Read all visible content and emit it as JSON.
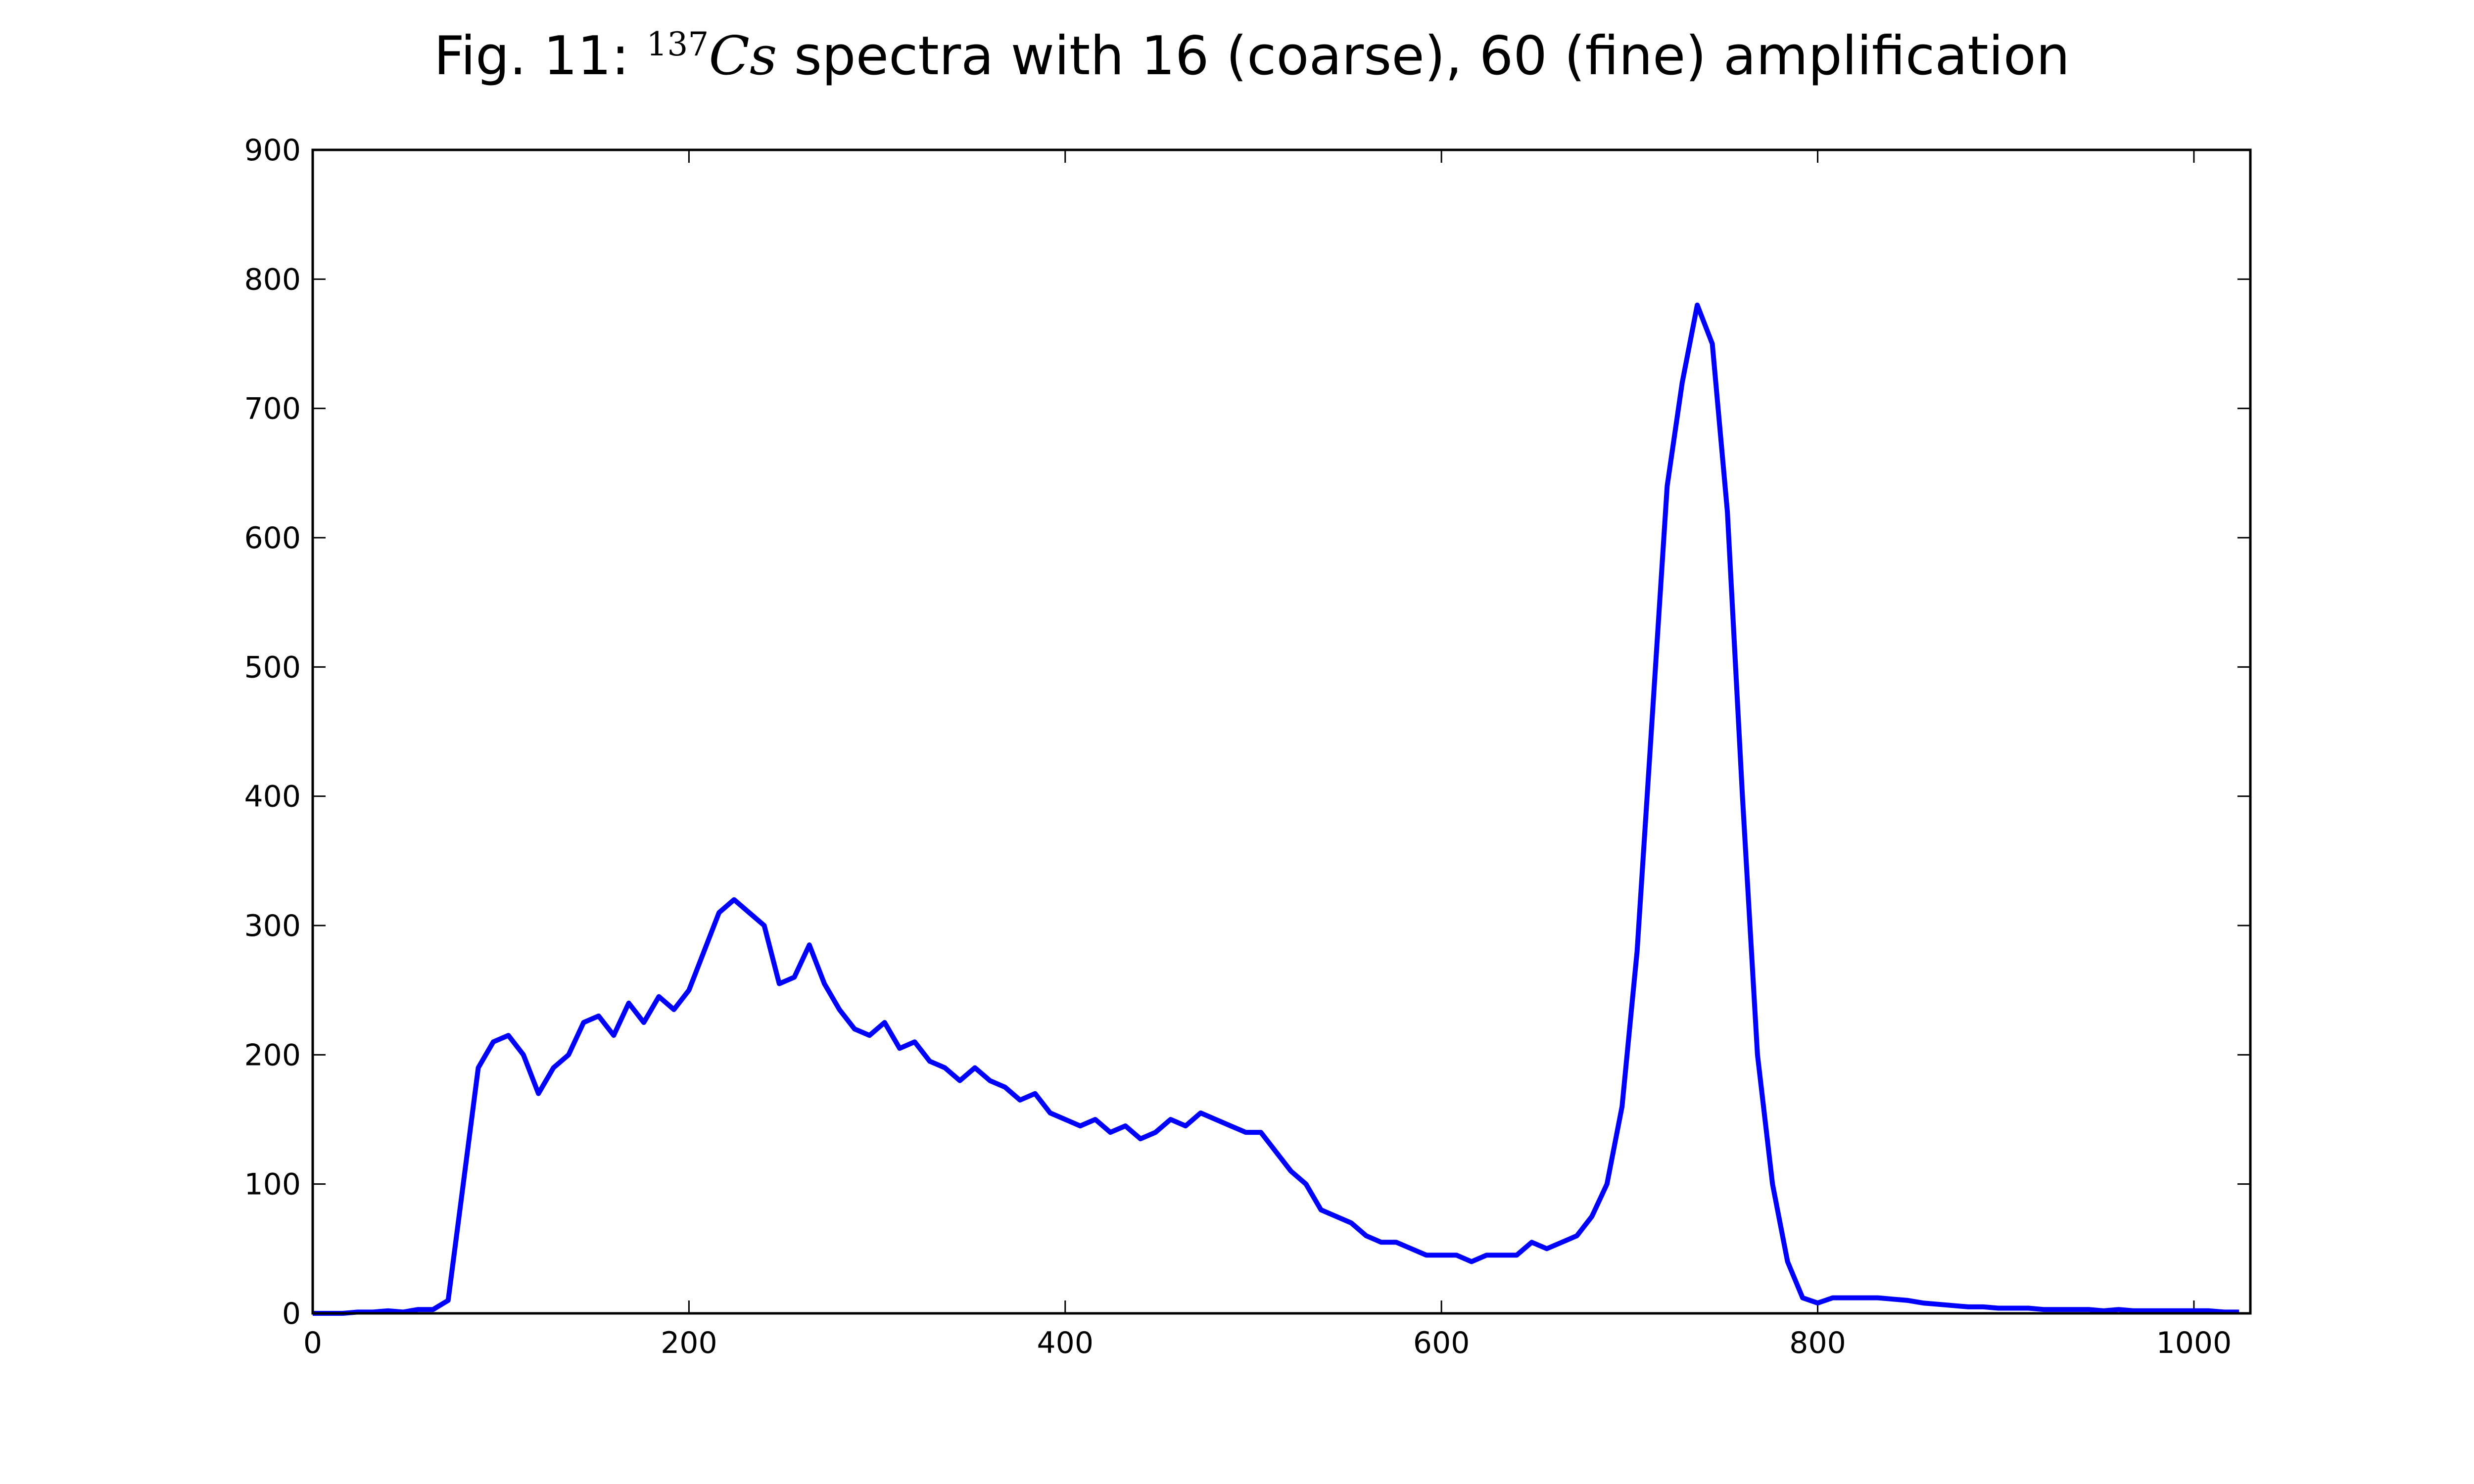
{
  "chart_data": {
    "type": "line",
    "title_prefix": "Fig. 11:",
    "title_sup": "137",
    "title_italic": "Cs",
    "title_rest": "spectra with 16 (coarse), 60 (fine) amplification",
    "xlim": [
      0,
      1030
    ],
    "ylim": [
      0,
      900
    ],
    "xticks": [
      0,
      200,
      400,
      600,
      800,
      1000
    ],
    "yticks": [
      0,
      100,
      200,
      300,
      400,
      500,
      600,
      700,
      800,
      900
    ],
    "x": [
      0,
      8,
      16,
      24,
      32,
      40,
      48,
      56,
      64,
      72,
      80,
      88,
      96,
      104,
      112,
      120,
      128,
      136,
      144,
      152,
      160,
      168,
      176,
      184,
      192,
      200,
      208,
      216,
      224,
      232,
      240,
      248,
      256,
      264,
      272,
      280,
      288,
      296,
      304,
      312,
      320,
      328,
      336,
      344,
      352,
      360,
      368,
      376,
      384,
      392,
      400,
      408,
      416,
      424,
      432,
      440,
      448,
      456,
      464,
      472,
      480,
      488,
      496,
      504,
      512,
      520,
      528,
      536,
      544,
      552,
      560,
      568,
      576,
      584,
      592,
      600,
      608,
      616,
      624,
      632,
      640,
      648,
      656,
      664,
      672,
      680,
      688,
      696,
      704,
      712,
      720,
      728,
      736,
      744,
      752,
      760,
      768,
      776,
      784,
      792,
      800,
      808,
      816,
      824,
      832,
      840,
      848,
      856,
      864,
      872,
      880,
      888,
      896,
      904,
      912,
      920,
      928,
      936,
      944,
      952,
      960,
      968,
      976,
      984,
      992,
      1000,
      1008,
      1016,
      1024
    ],
    "series": [
      {
        "name": "137Cs",
        "color": "#0000ff",
        "values": [
          0,
          0,
          0,
          1,
          1,
          2,
          1,
          3,
          3,
          10,
          100,
          190,
          210,
          215,
          200,
          170,
          190,
          200,
          225,
          230,
          215,
          240,
          225,
          245,
          235,
          250,
          280,
          310,
          320,
          310,
          300,
          255,
          260,
          285,
          255,
          235,
          220,
          215,
          225,
          205,
          210,
          195,
          190,
          180,
          190,
          180,
          175,
          165,
          170,
          155,
          150,
          145,
          150,
          140,
          145,
          135,
          140,
          150,
          145,
          155,
          150,
          145,
          140,
          140,
          125,
          110,
          100,
          80,
          75,
          70,
          60,
          55,
          55,
          50,
          45,
          45,
          45,
          40,
          45,
          45,
          45,
          55,
          50,
          55,
          60,
          75,
          100,
          160,
          280,
          460,
          640,
          720,
          780,
          750,
          620,
          400,
          200,
          100,
          40,
          12,
          8,
          12,
          12,
          12,
          12,
          11,
          10,
          8,
          7,
          6,
          5,
          5,
          4,
          4,
          4,
          3,
          3,
          3,
          3,
          2,
          3,
          2,
          2,
          2,
          2,
          2,
          2,
          1,
          1
        ]
      }
    ],
    "grid": false
  }
}
